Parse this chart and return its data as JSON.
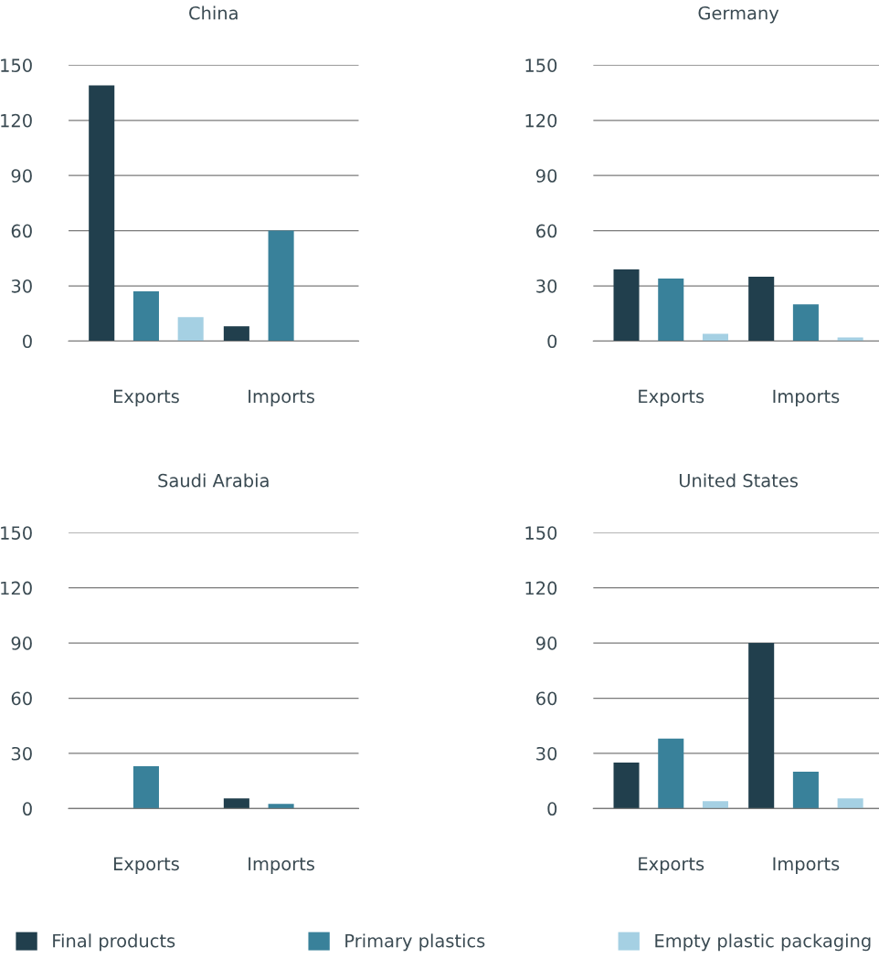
{
  "chart_data": [
    {
      "type": "bar",
      "title": "China",
      "categories": [
        "Exports",
        "Imports"
      ],
      "ylim": [
        0,
        150
      ],
      "yticks": [
        0,
        30,
        60,
        90,
        120,
        150
      ],
      "grid": "y",
      "series": [
        {
          "color": "#213f4d",
          "values": [
            139,
            8
          ]
        },
        {
          "color": "#39819a",
          "values": [
            27,
            60
          ]
        },
        {
          "color": "#a5d0e3",
          "values": [
            13,
            0
          ]
        }
      ]
    },
    {
      "type": "bar",
      "title": "Germany",
      "categories": [
        "Exports",
        "Imports"
      ],
      "ylim": [
        0,
        150
      ],
      "yticks": [
        0,
        30,
        60,
        90,
        120,
        150
      ],
      "grid": "y",
      "series": [
        {
          "color": "#213f4d",
          "values": [
            39,
            35
          ]
        },
        {
          "color": "#39819a",
          "values": [
            34,
            20
          ]
        },
        {
          "color": "#a5d0e3",
          "values": [
            4,
            2
          ]
        }
      ]
    },
    {
      "type": "bar",
      "title": "Saudi Arabia",
      "categories": [
        "Exports",
        "Imports"
      ],
      "ylim": [
        0,
        150
      ],
      "yticks": [
        0,
        30,
        60,
        90,
        120,
        150
      ],
      "grid": "y",
      "series": [
        {
          "color": "#213f4d",
          "values": [
            0,
            5.5
          ]
        },
        {
          "color": "#39819a",
          "values": [
            23,
            2.5
          ]
        },
        {
          "color": "#a5d0e3",
          "values": [
            0,
            0
          ]
        }
      ]
    },
    {
      "type": "bar",
      "title": "United States",
      "categories": [
        "Exports",
        "Imports"
      ],
      "ylim": [
        0,
        150
      ],
      "yticks": [
        0,
        30,
        60,
        90,
        120,
        150
      ],
      "grid": "y",
      "legend": "bottom",
      "series": [
        {
          "name": "Final products",
          "color": "#213f4d",
          "values": [
            25,
            90
          ]
        },
        {
          "name": "Primary plastics",
          "color": "#39819a",
          "values": [
            38,
            20
          ]
        },
        {
          "name": "Empty plastic packaging",
          "color": "#a5d0e3",
          "values": [
            4,
            5.5
          ]
        }
      ]
    }
  ]
}
